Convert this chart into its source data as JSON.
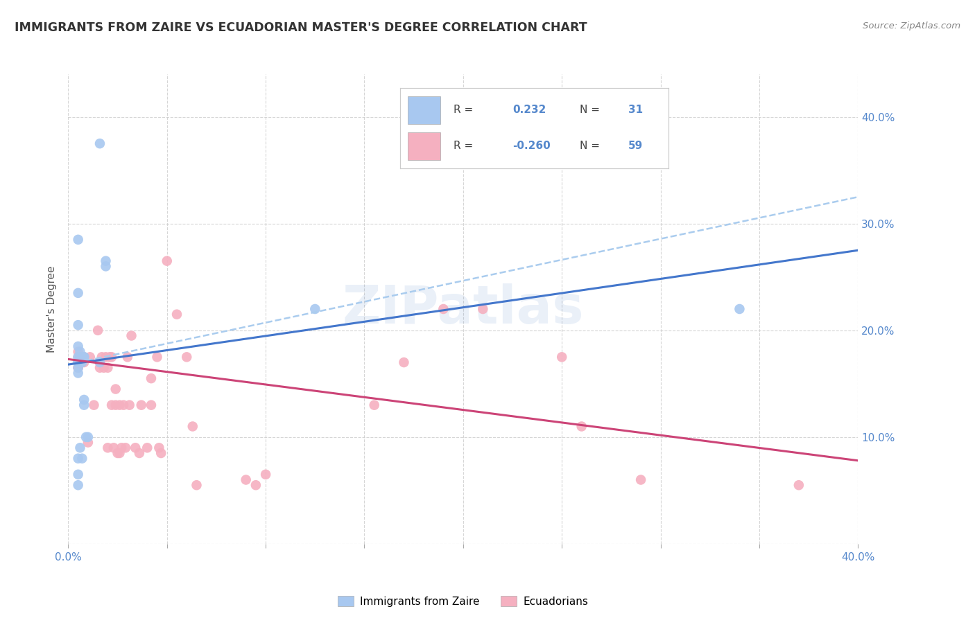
{
  "title": "IMMIGRANTS FROM ZAIRE VS ECUADORIAN MASTER'S DEGREE CORRELATION CHART",
  "source": "Source: ZipAtlas.com",
  "ylabel": "Master's Degree",
  "right_yticks": [
    "10.0%",
    "20.0%",
    "30.0%",
    "40.0%"
  ],
  "right_ytick_vals": [
    0.1,
    0.2,
    0.3,
    0.4
  ],
  "xlim": [
    0.0,
    0.4
  ],
  "ylim": [
    0.0,
    0.44
  ],
  "blue_R": "0.232",
  "blue_N": "31",
  "pink_R": "-0.260",
  "pink_N": "59",
  "blue_color": "#A8C8F0",
  "pink_color": "#F5B0C0",
  "blue_line_color": "#4477CC",
  "pink_line_color": "#CC4477",
  "dashed_line_color": "#AACCEE",
  "label_color": "#5588CC",
  "watermark_text": "ZIPatlas",
  "legend_label_blue": "Immigrants from Zaire",
  "legend_label_pink": "Ecuadorians",
  "blue_scatter_x": [
    0.005,
    0.016,
    0.019,
    0.019,
    0.005,
    0.005,
    0.006,
    0.007,
    0.008,
    0.008,
    0.009,
    0.01,
    0.005,
    0.005,
    0.005,
    0.006,
    0.005,
    0.008,
    0.008,
    0.006,
    0.007,
    0.005,
    0.005,
    0.005,
    0.125,
    0.005,
    0.007,
    0.016,
    0.005,
    0.34,
    0.005
  ],
  "blue_scatter_y": [
    0.185,
    0.375,
    0.265,
    0.26,
    0.165,
    0.17,
    0.18,
    0.175,
    0.175,
    0.175,
    0.1,
    0.1,
    0.08,
    0.065,
    0.175,
    0.175,
    0.235,
    0.135,
    0.13,
    0.09,
    0.08,
    0.055,
    0.16,
    0.17,
    0.22,
    0.17,
    0.17,
    0.17,
    0.205,
    0.22,
    0.285
  ],
  "pink_scatter_x": [
    0.005,
    0.005,
    0.005,
    0.005,
    0.005,
    0.006,
    0.008,
    0.008,
    0.01,
    0.011,
    0.013,
    0.015,
    0.016,
    0.016,
    0.017,
    0.018,
    0.019,
    0.02,
    0.02,
    0.021,
    0.022,
    0.022,
    0.023,
    0.024,
    0.024,
    0.025,
    0.026,
    0.026,
    0.027,
    0.028,
    0.029,
    0.03,
    0.031,
    0.032,
    0.034,
    0.036,
    0.037,
    0.04,
    0.042,
    0.042,
    0.045,
    0.046,
    0.047,
    0.05,
    0.055,
    0.06,
    0.063,
    0.065,
    0.09,
    0.095,
    0.1,
    0.155,
    0.17,
    0.19,
    0.21,
    0.25,
    0.26,
    0.29,
    0.37
  ],
  "pink_scatter_y": [
    0.165,
    0.165,
    0.17,
    0.175,
    0.18,
    0.175,
    0.17,
    0.175,
    0.095,
    0.175,
    0.13,
    0.2,
    0.165,
    0.17,
    0.175,
    0.165,
    0.175,
    0.09,
    0.165,
    0.175,
    0.175,
    0.13,
    0.09,
    0.13,
    0.145,
    0.085,
    0.085,
    0.13,
    0.09,
    0.13,
    0.09,
    0.175,
    0.13,
    0.195,
    0.09,
    0.085,
    0.13,
    0.09,
    0.155,
    0.13,
    0.175,
    0.09,
    0.085,
    0.265,
    0.215,
    0.175,
    0.11,
    0.055,
    0.06,
    0.055,
    0.065,
    0.13,
    0.17,
    0.22,
    0.22,
    0.175,
    0.11,
    0.06,
    0.055
  ],
  "blue_line_y_start": 0.168,
  "blue_line_y_end": 0.275,
  "pink_line_y_start": 0.173,
  "pink_line_y_end": 0.078,
  "dashed_line_y_start": 0.168,
  "dashed_line_y_end": 0.325
}
